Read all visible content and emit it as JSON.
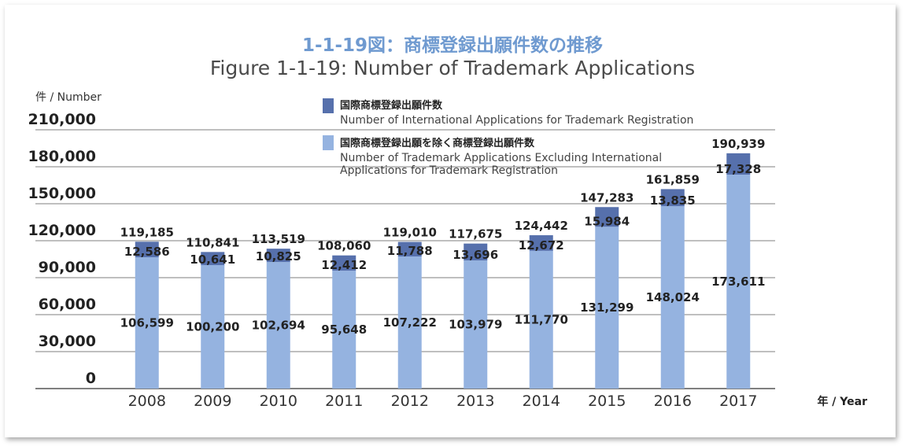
{
  "chart_data": {
    "type": "bar",
    "stacked": true,
    "title": "1-1-19図：商標登録出願件数の推移",
    "subtitle": "Figure 1-1-19: Number of Trademark Applications",
    "ylabel": "件 / Number",
    "xlabel": "年 / Year",
    "ylim": [
      0,
      210000
    ],
    "yticks": [
      "0",
      "30,000",
      "60,000",
      "90,000",
      "120,000",
      "150,000",
      "180,000",
      "210,000"
    ],
    "grid": true,
    "legend_position": "top-center",
    "categories": [
      "2008",
      "2009",
      "2010",
      "2011",
      "2012",
      "2013",
      "2014",
      "2015",
      "2016",
      "2017"
    ],
    "series": [
      {
        "name_jp": "国際商標登録出願を除く商標登録出願件数",
        "name_en": "Number of Trademark Applications Excluding International Applications for Trademark Registration",
        "name_en_lines": [
          "Number of Trademark Applications Excluding International",
          "Applications for Trademark Registration"
        ],
        "color": "#95b3e0",
        "values": [
          106599,
          100200,
          102694,
          95648,
          107222,
          103979,
          111770,
          131299,
          148024,
          173611
        ],
        "labels": [
          "106,599",
          "100,200",
          "102,694",
          "95,648",
          "107,222",
          "103,979",
          "111,770",
          "131,299",
          "148,024",
          "173,611"
        ]
      },
      {
        "name_jp": "国際商標登録出願件数",
        "name_en": "Number of International Applications for Trademark Registration",
        "color": "#5670ac",
        "values": [
          12586,
          10641,
          10825,
          12412,
          11788,
          13696,
          12672,
          15984,
          13835,
          17328
        ],
        "labels": [
          "12,586",
          "10,641",
          "10,825",
          "12,412",
          "11,788",
          "13,696",
          "12,672",
          "15,984",
          "13,835",
          "17,328"
        ]
      }
    ],
    "totals": [
      119185,
      110841,
      113519,
      108060,
      119010,
      117675,
      124442,
      147283,
      161859,
      190939
    ],
    "total_labels": [
      "119,185",
      "110,841",
      "113,519",
      "108,060",
      "119,010",
      "117,675",
      "124,442",
      "147,283",
      "161,859",
      "190,939"
    ]
  }
}
